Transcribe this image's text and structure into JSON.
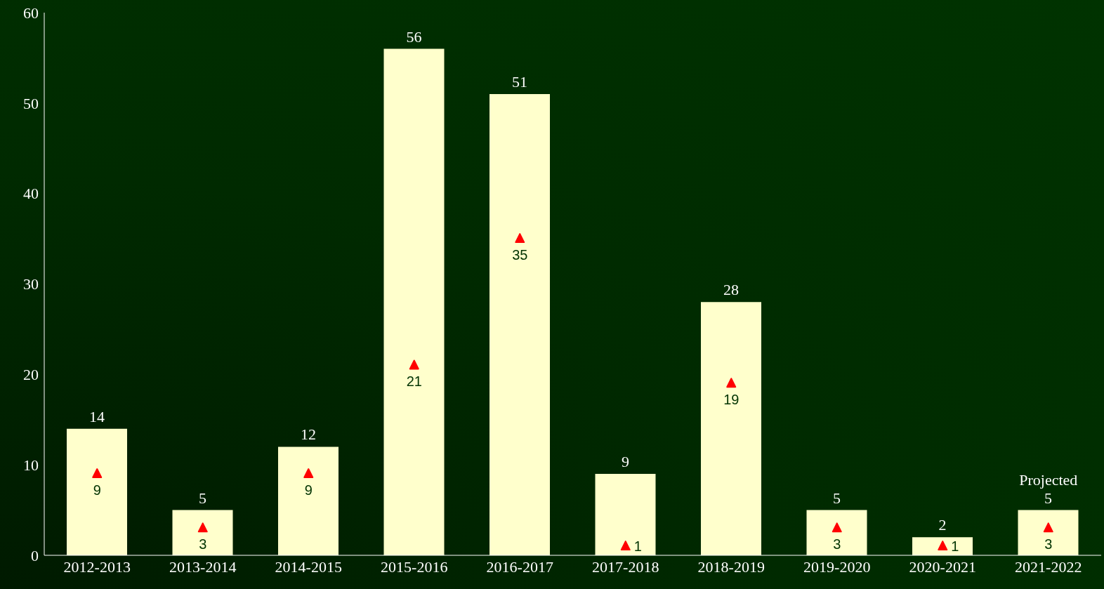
{
  "chart_data": {
    "type": "bar",
    "categories": [
      "2012-2013",
      "2013-2014",
      "2014-2015",
      "2015-2016",
      "2016-2017",
      "2017-2018",
      "2018-2019",
      "2019-2020",
      "2020-2021",
      "2021-2022"
    ],
    "series": [
      {
        "color": "#ffffcc",
        "values": [
          14,
          5,
          12,
          56,
          51,
          9,
          28,
          5,
          2,
          5
        ]
      },
      {
        "type": "scatter",
        "color": "#ff0000",
        "values": [
          9,
          3,
          9,
          21,
          35,
          1,
          19,
          3,
          1,
          3
        ]
      }
    ],
    "ylim": [
      0,
      60
    ],
    "yticks": [
      0,
      10,
      20,
      30,
      40,
      50,
      60
    ],
    "data_labels": true,
    "marker": "triangle",
    "annotations": [
      {
        "text": "Projected",
        "x": "2021-2022",
        "y": 5
      }
    ]
  }
}
